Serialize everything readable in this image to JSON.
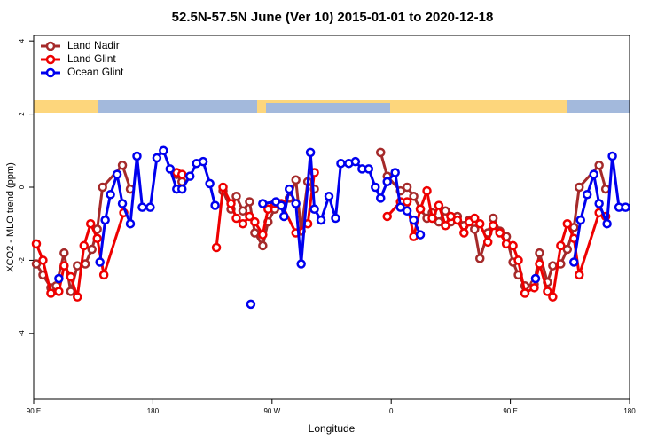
{
  "chart_data": {
    "type": "line",
    "title": "52.5N-57.5N June (Ver 10)   2015-01-01 to 2020-12-18",
    "x_label": "Longitude",
    "y_label": "XCO2 - MLO trend (ppm)",
    "xlim": [
      90,
      540
    ],
    "xticks": [
      {
        "value": 90,
        "label": "90 E"
      },
      180,
      {
        "value": 270,
        "label": "90 W"
      },
      {
        "value": 360,
        "label": "0"
      },
      {
        "value": 450,
        "label": "90 E"
      },
      {
        "value": 540,
        "label": "180"
      }
    ],
    "ylim": [
      -5.8,
      4.15
    ],
    "yticks": [
      -4,
      -2,
      0,
      2,
      4
    ],
    "legend": "top-left",
    "series": [
      {
        "name": "Land Nadir",
        "color": "#a52a2a",
        "x": [
          92,
          97,
          103,
          107,
          113,
          118,
          123,
          129,
          134,
          138,
          142,
          157,
          163,
          null,
          198,
          202,
          null,
          233,
          239,
          243,
          248,
          253,
          257,
          263,
          267,
          272,
          277,
          283,
          288,
          292,
          297,
          302,
          null,
          352,
          357,
          367,
          372,
          377,
          382,
          387,
          391,
          396,
          401,
          405,
          410,
          415,
          419,
          423,
          427,
          433,
          437,
          442,
          447,
          452,
          456,
          461,
          468,
          472,
          478,
          482,
          488,
          493,
          498,
          502,
          517,
          522
        ],
        "values": [
          -2.1,
          -2.4,
          -2.75,
          -2.7,
          -1.8,
          -2.85,
          -2.15,
          -2.1,
          -1.7,
          -1.15,
          0.0,
          0.6,
          -0.05,
          null,
          0.35,
          0.15,
          null,
          -0.1,
          -0.6,
          -0.25,
          -0.65,
          -0.4,
          -1.25,
          -1.6,
          -0.95,
          -0.6,
          -0.5,
          -0.3,
          0.2,
          -1.2,
          0.15,
          -0.05,
          null,
          0.95,
          0.3,
          -0.1,
          0.0,
          -0.25,
          -0.6,
          -0.85,
          -0.7,
          -0.95,
          -0.65,
          -0.95,
          -0.8,
          -1.05,
          -0.9,
          -1.15,
          -1.95,
          -1.25,
          -0.85,
          -1.2,
          -1.35,
          -2.05,
          -2.4,
          -2.7,
          -2.65,
          -1.8,
          -2.6,
          -2.15,
          -2.1,
          -1.7,
          -1.1,
          0.0,
          0.6,
          -0.05
        ]
      },
      {
        "name": "Land Glint",
        "color": "#ee0000",
        "x": [
          92,
          97,
          103,
          109,
          113,
          118,
          123,
          128,
          133,
          138,
          143,
          158,
          null,
          198,
          202,
          null,
          228,
          233,
          239,
          243,
          248,
          253,
          257,
          263,
          267,
          272,
          277,
          288,
          297,
          302,
          null,
          357,
          367,
          372,
          377,
          382,
          387,
          391,
          396,
          401,
          405,
          410,
          415,
          419,
          423,
          427,
          433,
          437,
          442,
          447,
          452,
          456,
          461,
          468,
          472,
          478,
          482,
          488,
          493,
          498,
          502,
          517,
          522
        ],
        "values": [
          -1.55,
          -2.0,
          -2.9,
          -2.85,
          -2.15,
          -2.45,
          -3.0,
          -1.6,
          -1.0,
          -1.4,
          -2.4,
          -0.7,
          null,
          0.4,
          0.35,
          null,
          -1.65,
          0.0,
          -0.45,
          -0.85,
          -1.0,
          -0.8,
          -0.95,
          -1.3,
          -0.6,
          -0.45,
          -0.45,
          -1.25,
          -1.0,
          0.4,
          null,
          -0.8,
          -0.4,
          -0.4,
          -1.35,
          -0.6,
          -0.1,
          -0.85,
          -0.5,
          -1.05,
          -0.8,
          -0.9,
          -1.25,
          -0.95,
          -0.85,
          -1.0,
          -1.5,
          -1.05,
          -1.25,
          -1.55,
          -1.6,
          -2.0,
          -2.9,
          -2.75,
          -2.1,
          -2.85,
          -3.0,
          -1.6,
          -1.0,
          -1.4,
          -2.4,
          -0.7,
          -0.8
        ]
      },
      {
        "name": "Ocean Glint",
        "color": "#0000ee",
        "x": [
          109,
          null,
          140,
          144,
          148,
          153,
          157,
          163,
          168,
          172,
          178,
          183,
          188,
          193,
          198,
          202,
          208,
          213,
          218,
          223,
          227,
          null,
          254,
          null,
          263,
          273,
          277,
          279,
          283,
          288,
          292,
          299,
          302,
          307,
          313,
          318,
          322,
          328,
          333,
          338,
          343,
          348,
          352,
          357,
          363,
          367,
          372,
          377,
          382,
          null,
          469,
          null,
          498,
          503,
          508,
          513,
          517,
          523,
          527,
          532,
          537
        ],
        "values": [
          -2.5,
          null,
          -2.05,
          -0.9,
          -0.2,
          0.35,
          -0.45,
          -1.0,
          0.85,
          -0.55,
          -0.55,
          0.8,
          1.0,
          0.5,
          -0.05,
          -0.05,
          0.3,
          0.65,
          0.7,
          0.1,
          -0.5,
          null,
          -3.2,
          null,
          -0.45,
          -0.4,
          -0.5,
          -0.8,
          -0.05,
          -0.45,
          -2.1,
          0.95,
          -0.6,
          -0.9,
          -0.25,
          -0.85,
          0.65,
          0.65,
          0.7,
          0.5,
          0.5,
          0.0,
          -0.3,
          0.15,
          0.4,
          -0.55,
          -0.65,
          -0.9,
          -1.3,
          null,
          -2.5,
          null,
          -2.05,
          -0.9,
          -0.2,
          0.35,
          -0.45,
          -1.0,
          0.85,
          -0.55,
          -0.55
        ]
      }
    ]
  }
}
